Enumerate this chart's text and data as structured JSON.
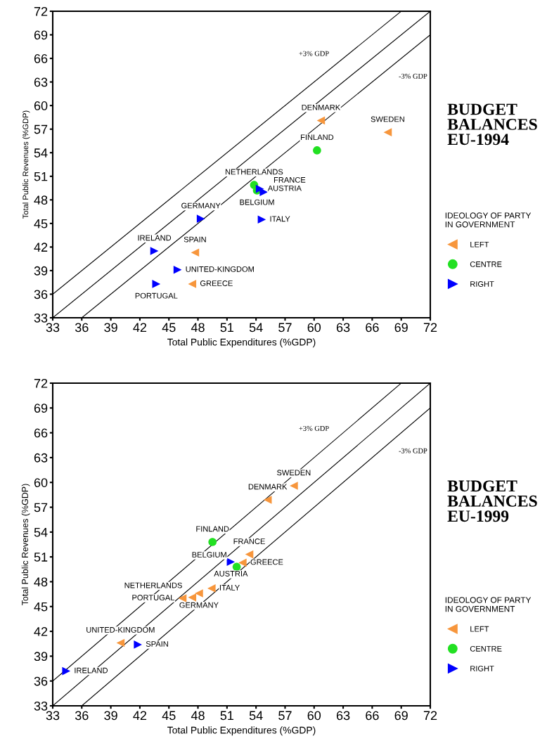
{
  "chart_data": [
    {
      "type": "scatter",
      "xlabel": "Total Public Expenditures (%GDP)",
      "ylabel": "Total Public Revenues (%GDP)",
      "legend_title": "IDEOLOGY OF PARTY\nIN GOVERNMENT",
      "legend": "right",
      "grid": false,
      "xlim": [
        33,
        72
      ],
      "ylim": [
        33,
        72
      ],
      "xticks": [
        33,
        36,
        39,
        42,
        45,
        48,
        51,
        54,
        57,
        60,
        63,
        66,
        69,
        72
      ],
      "yticks": [
        33,
        36,
        39,
        42,
        45,
        48,
        51,
        54,
        57,
        60,
        63,
        66,
        69,
        72
      ],
      "series": [
        {
          "name": "LEFT",
          "color": "#f7963c",
          "marker": "triangle-left",
          "x": [
            60.7,
            67.6,
            47.7,
            47.4
          ],
          "values": [
            58.1,
            56.6,
            41.3,
            37.3
          ]
        },
        {
          "name": "CENTRE",
          "color": "#22e022",
          "marker": "circle",
          "x": [
            60.3,
            53.8,
            54.1
          ],
          "values": [
            54.3,
            49.9,
            49.2
          ]
        },
        {
          "name": "RIGHT",
          "color": "#0000ff",
          "marker": "triangle-right",
          "x": [
            54.4,
            54.8,
            48.3,
            54.6,
            43.5,
            45.9,
            43.7
          ],
          "values": [
            49.4,
            49.0,
            45.6,
            45.5,
            41.5,
            39.1,
            37.3
          ]
        },
        {
          "type": "line",
          "name": "+3% GDP",
          "color": "#000000",
          "x": [
            33,
            69
          ],
          "values": [
            36,
            72
          ]
        },
        {
          "type": "line",
          "color": "#000000",
          "x": [
            33,
            72
          ],
          "values": [
            33,
            72
          ]
        },
        {
          "type": "line",
          "name": "-3% GDP",
          "color": "#000000",
          "x": [
            36,
            72
          ],
          "values": [
            33,
            69
          ]
        }
      ],
      "annotations": [
        "BUDGET\nBALANCES\nEU-1994",
        {
          "text": "DENMARK",
          "x": 60.7,
          "y": 58.1
        },
        {
          "text": "SWEDEN",
          "x": 67.6,
          "y": 56.6
        },
        {
          "text": "FINLAND",
          "x": 60.3,
          "y": 54.3
        },
        {
          "text": "NETHERLANDS",
          "x": 53.8,
          "y": 49.9
        },
        {
          "text": "AUSTRIA",
          "x": 54.4,
          "y": 49.4
        },
        {
          "text": "BELGIUM",
          "x": 54.1,
          "y": 49.2
        },
        {
          "text": "FRANCE",
          "x": 54.8,
          "y": 49.0
        },
        {
          "text": "GERMANY",
          "x": 48.3,
          "y": 45.6
        },
        {
          "text": "ITALY",
          "x": 54.6,
          "y": 45.5
        },
        {
          "text": "IRELAND",
          "x": 43.5,
          "y": 41.5
        },
        {
          "text": "SPAIN",
          "x": 47.7,
          "y": 41.3
        },
        {
          "text": "UNITED-KINGDOM",
          "x": 45.9,
          "y": 39.1
        },
        {
          "text": "PORTUGAL",
          "x": 43.7,
          "y": 37.3
        },
        {
          "text": "GREECE",
          "x": 47.4,
          "y": 37.3
        }
      ]
    },
    {
      "type": "scatter",
      "xlabel": "Total Public Expenditures (%GDP)",
      "ylabel": "Total Public Revenues (%GDP)",
      "legend_title": "IDEOLOGY OF PARTY\nIN GOVERNMENT",
      "legend": "right",
      "grid": false,
      "xlim": [
        33,
        72
      ],
      "ylim": [
        33,
        72
      ],
      "xticks": [
        33,
        36,
        39,
        42,
        45,
        48,
        51,
        54,
        57,
        60,
        63,
        66,
        69,
        72
      ],
      "yticks": [
        33,
        36,
        39,
        42,
        45,
        48,
        51,
        54,
        57,
        60,
        63,
        66,
        69,
        72
      ],
      "series": [
        {
          "name": "LEFT",
          "color": "#f7963c",
          "marker": "triangle-left",
          "x": [
            57.9,
            55.2,
            53.3,
            52.6,
            49.4,
            48.1,
            47.4,
            46.4,
            40.0
          ],
          "values": [
            59.6,
            57.9,
            51.3,
            50.3,
            47.2,
            46.6,
            46.1,
            46.0,
            40.6
          ]
        },
        {
          "name": "CENTRE",
          "color": "#22e022",
          "marker": "circle",
          "x": [
            49.5,
            52.0
          ],
          "values": [
            52.8,
            49.8
          ]
        },
        {
          "name": "RIGHT",
          "color": "#0000ff",
          "marker": "triangle-right",
          "x": [
            51.4,
            41.8,
            34.4
          ],
          "values": [
            50.4,
            40.4,
            37.2
          ]
        },
        {
          "type": "line",
          "name": "+3% GDP",
          "color": "#000000",
          "x": [
            33,
            69
          ],
          "values": [
            36,
            72
          ]
        },
        {
          "type": "line",
          "color": "#000000",
          "x": [
            33,
            72
          ],
          "values": [
            33,
            72
          ]
        },
        {
          "type": "line",
          "name": "-3% GDP",
          "color": "#000000",
          "x": [
            36,
            72
          ],
          "values": [
            33,
            69
          ]
        }
      ],
      "annotations": [
        "BUDGET\nBALANCES\nEU-1999",
        {
          "text": "SWEDEN",
          "x": 57.9,
          "y": 59.6
        },
        {
          "text": "DENMARK",
          "x": 55.2,
          "y": 57.9
        },
        {
          "text": "FINLAND",
          "x": 49.5,
          "y": 52.8
        },
        {
          "text": "FRANCE",
          "x": 53.3,
          "y": 51.3
        },
        {
          "text": "AUSTRIA",
          "x": 51.4,
          "y": 50.4
        },
        {
          "text": "GREECE",
          "x": 52.6,
          "y": 50.3
        },
        {
          "text": "BELGIUM",
          "x": 52.0,
          "y": 49.8
        },
        {
          "text": "ITALY",
          "x": 49.4,
          "y": 47.2
        },
        {
          "text": "GERMANY",
          "x": 48.1,
          "y": 46.6
        },
        {
          "text": "NETHERLANDS",
          "x": 47.4,
          "y": 46.1
        },
        {
          "text": "PORTUGAL",
          "x": 46.4,
          "y": 46.0
        },
        {
          "text": "UNITED-KINGDOM",
          "x": 40.0,
          "y": 40.6
        },
        {
          "text": "SPAIN",
          "x": 41.8,
          "y": 40.4
        },
        {
          "text": "IRELAND",
          "x": 34.4,
          "y": 37.2
        }
      ]
    }
  ]
}
